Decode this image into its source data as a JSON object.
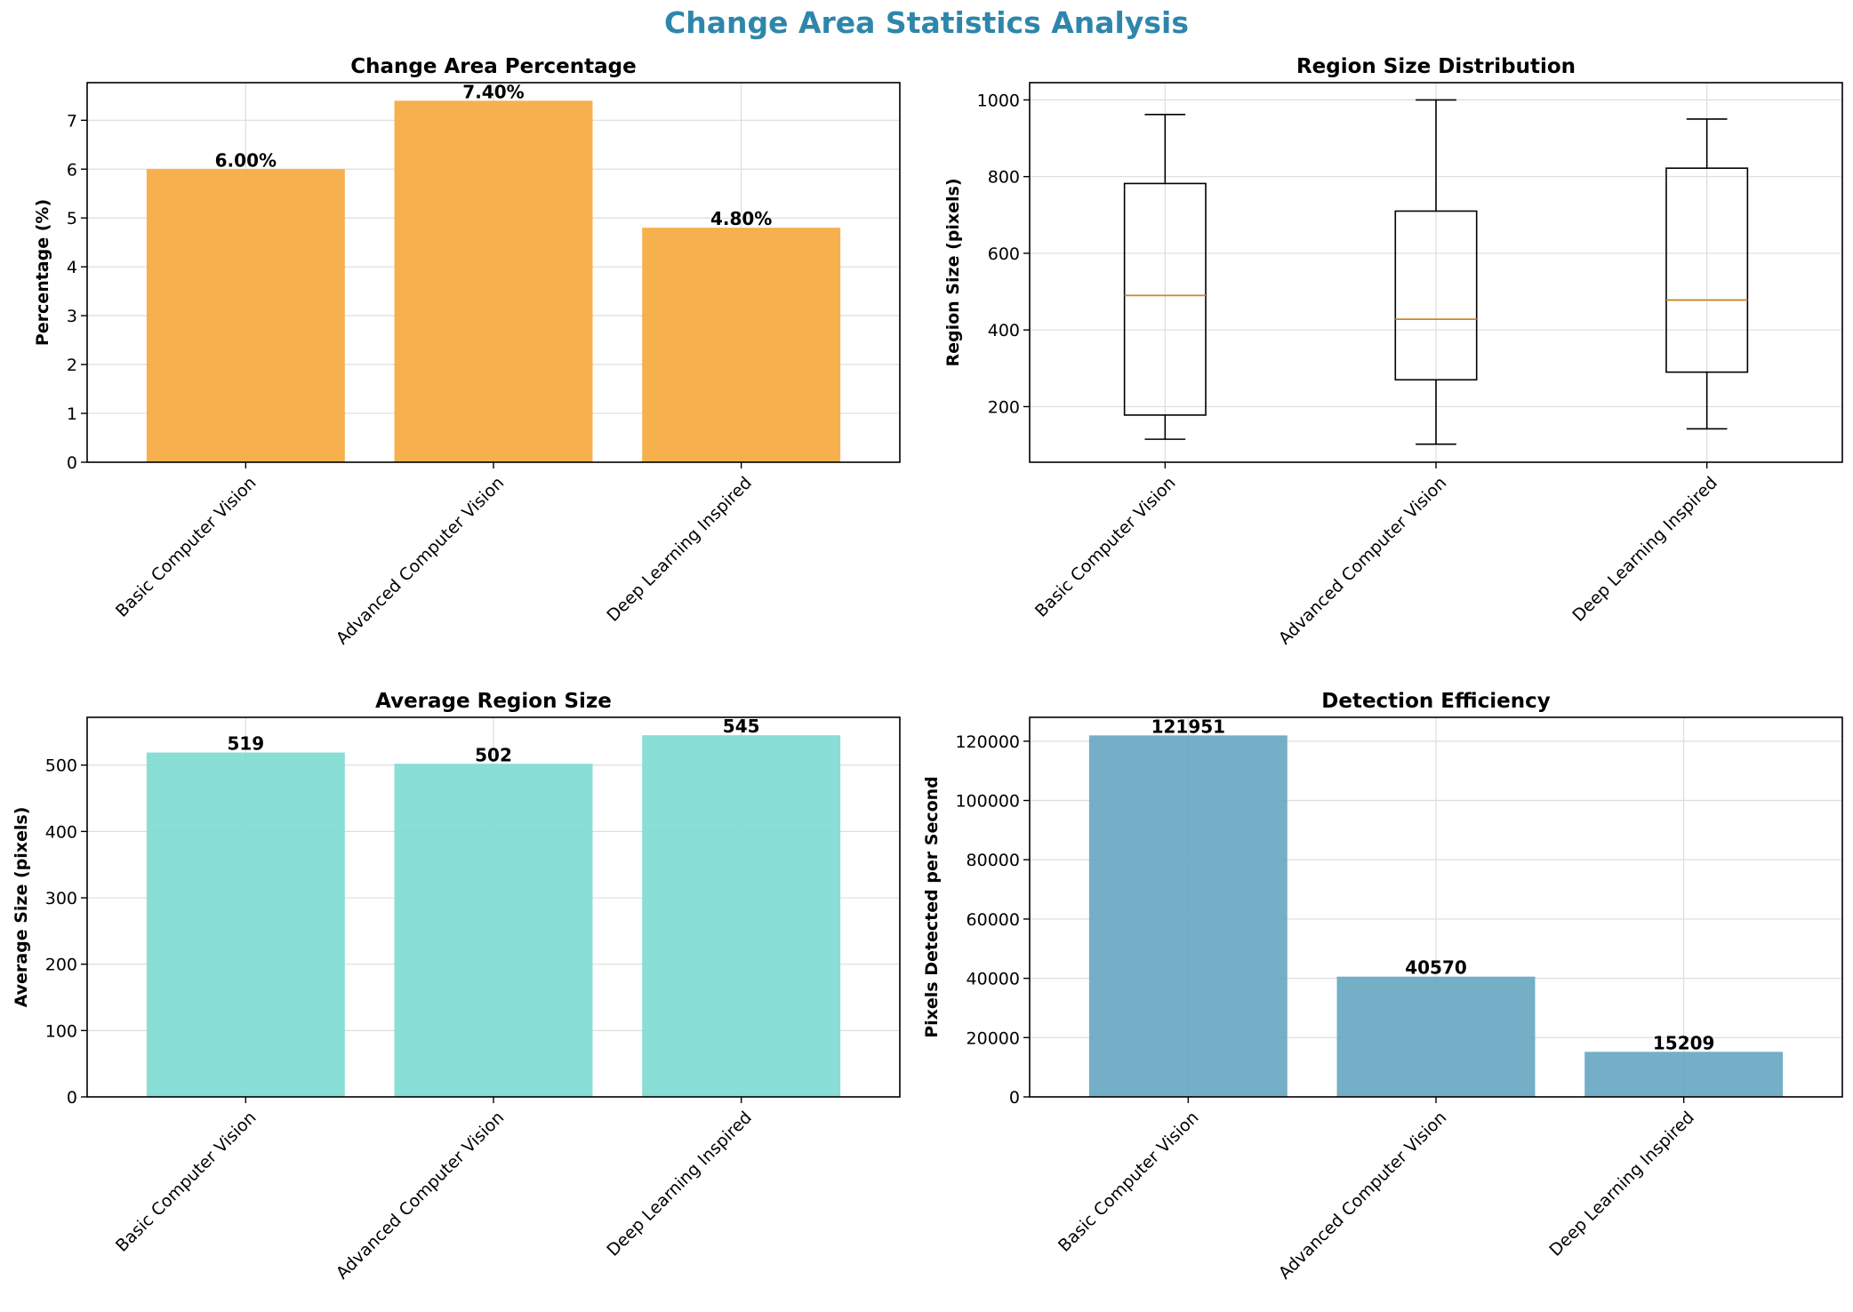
{
  "figure": {
    "title": "Change Area Statistics Analysis",
    "title_color": "#2e86ab"
  },
  "chart_data": [
    {
      "type": "bar",
      "title": "Change Area Percentage",
      "xlabel": "",
      "ylabel": "Percentage (%)",
      "categories": [
        "Basic Computer Vision",
        "Advanced Computer Vision",
        "Deep Learning Inspired"
      ],
      "values": [
        6.0,
        7.4,
        4.8
      ],
      "value_labels": [
        "6.00%",
        "7.40%",
        "4.80%"
      ],
      "ylim": [
        0,
        7.77
      ],
      "yticks": [
        0,
        1,
        2,
        3,
        4,
        5,
        6,
        7
      ],
      "color": "#f5a93f",
      "grid": true
    },
    {
      "type": "box",
      "title": "Region Size Distribution",
      "xlabel": "",
      "ylabel": "Region Size (pixels)",
      "categories": [
        "Basic Computer Vision",
        "Advanced Computer Vision",
        "Deep Learning Inspired"
      ],
      "boxes": [
        {
          "whisker_low": 115,
          "q1": 178,
          "median": 490,
          "q3": 782,
          "whisker_high": 962
        },
        {
          "whisker_low": 102,
          "q1": 270,
          "median": 428,
          "q3": 710,
          "whisker_high": 1000
        },
        {
          "whisker_low": 142,
          "q1": 290,
          "median": 478,
          "q3": 822,
          "whisker_high": 950
        }
      ],
      "ylim": [
        55,
        1045
      ],
      "yticks": [
        200,
        400,
        600,
        800,
        1000
      ],
      "median_color": "#c8882a",
      "grid": true
    },
    {
      "type": "bar",
      "title": "Average Region Size",
      "xlabel": "",
      "ylabel": "Average Size (pixels)",
      "categories": [
        "Basic Computer Vision",
        "Advanced Computer Vision",
        "Deep Learning Inspired"
      ],
      "values": [
        519,
        502,
        545
      ],
      "value_labels": [
        "519",
        "502",
        "545"
      ],
      "ylim": [
        0,
        572
      ],
      "yticks": [
        0,
        100,
        200,
        300,
        400,
        500
      ],
      "color": "#7fdbd3",
      "grid": true
    },
    {
      "type": "bar",
      "title": "Detection Efficiency",
      "xlabel": "",
      "ylabel": "Pixels Detected per Second",
      "categories": [
        "Basic Computer Vision",
        "Advanced Computer Vision",
        "Deep Learning Inspired"
      ],
      "values": [
        121951,
        40570,
        15209
      ],
      "value_labels": [
        "121951",
        "40570",
        "15209"
      ],
      "ylim": [
        0,
        128050
      ],
      "yticks": [
        0,
        20000,
        40000,
        60000,
        80000,
        100000,
        120000
      ],
      "color": "#68a8c2",
      "grid": true
    }
  ]
}
